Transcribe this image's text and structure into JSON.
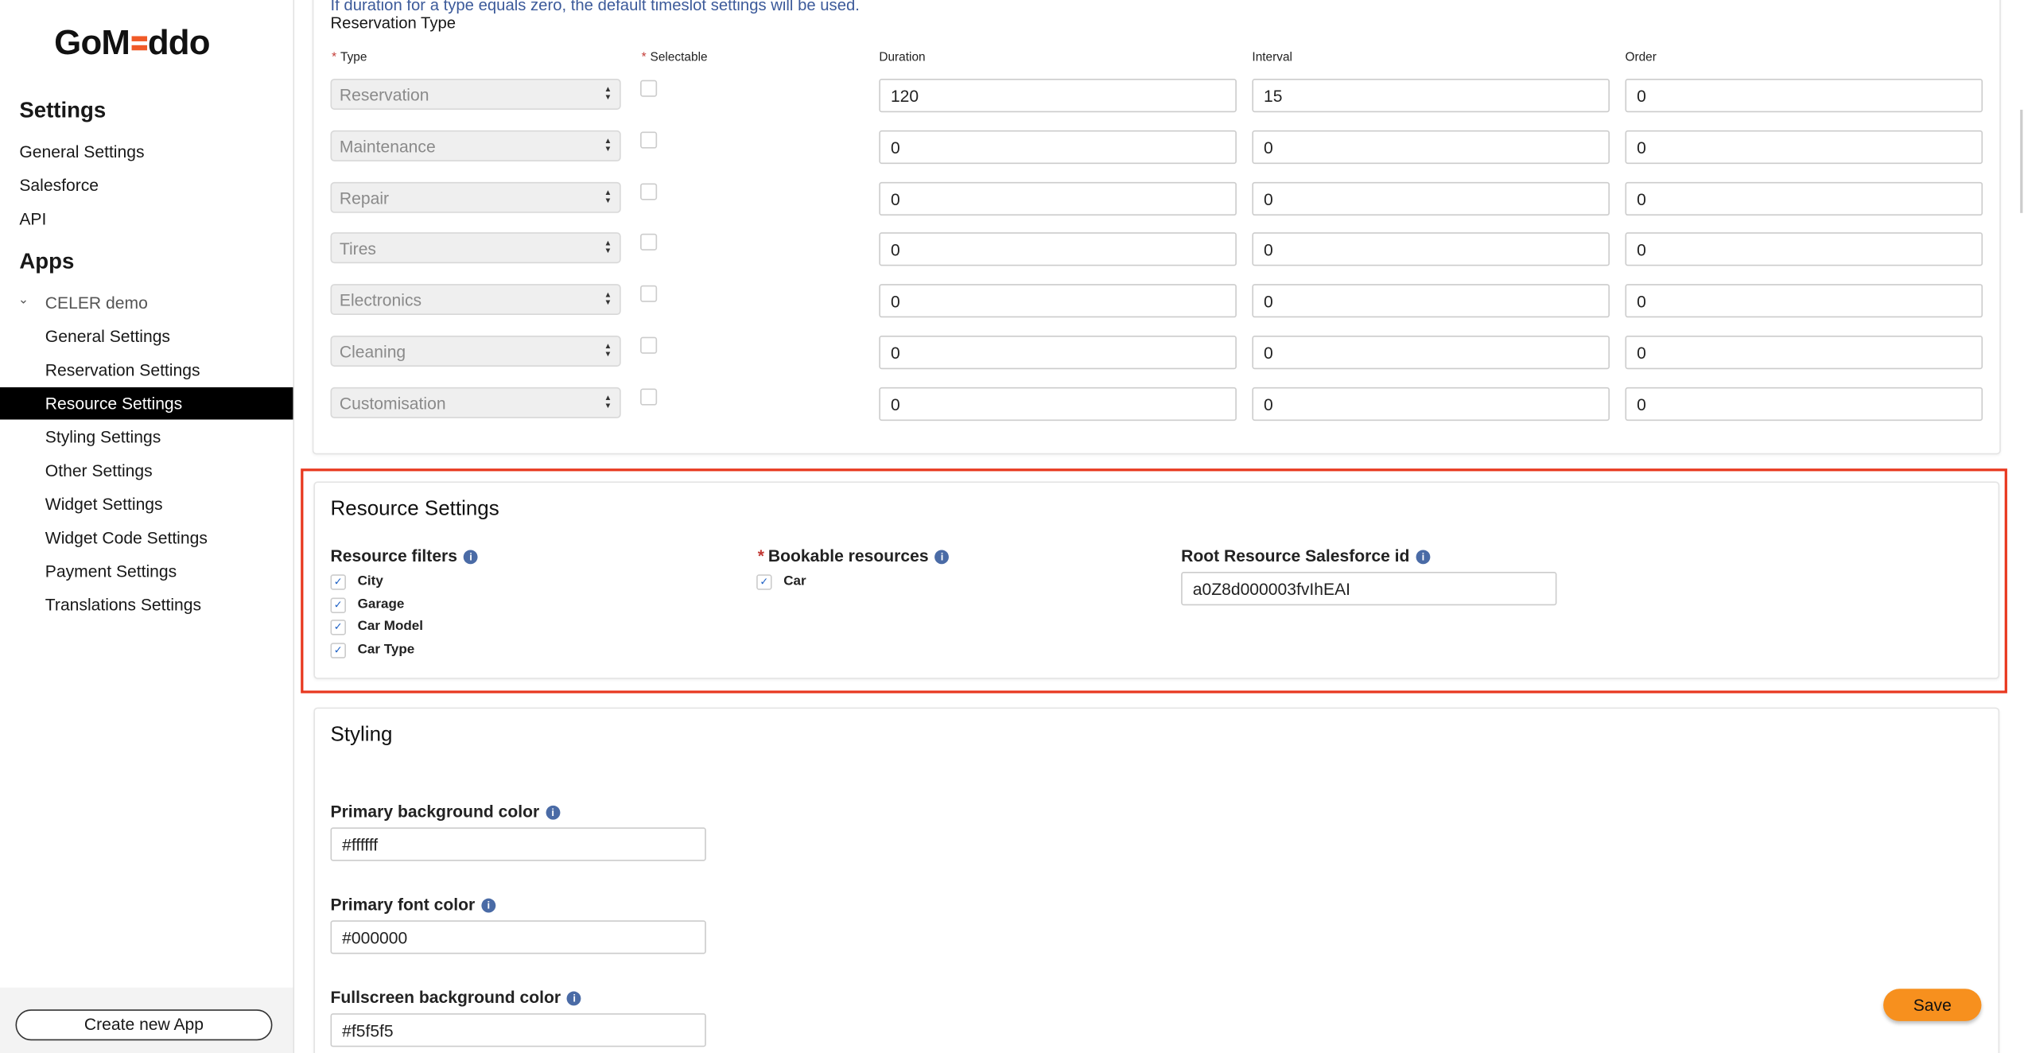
{
  "sidebar": {
    "logo": {
      "left": "GoM",
      "right": "ddo",
      "accent": "#f05a28"
    },
    "settings_heading": "Settings",
    "settings_items": [
      "General Settings",
      "Salesforce",
      "API"
    ],
    "apps_heading": "Apps",
    "app_name": "CELER demo",
    "app_items": [
      "General Settings",
      "Reservation Settings",
      "Resource Settings",
      "Styling Settings",
      "Other Settings",
      "Widget Settings",
      "Widget Code Settings",
      "Payment Settings",
      "Translations Settings"
    ],
    "active_item": "Resource Settings",
    "create_button": "Create new App"
  },
  "reservation": {
    "note": "If duration for a type equals zero, the default timeslot settings will be used.",
    "heading": "Reservation Type",
    "columns": {
      "type": "Type",
      "selectable": "Selectable",
      "duration": "Duration",
      "interval": "Interval",
      "order": "Order"
    },
    "rows": [
      {
        "type": "Reservation",
        "selectable": false,
        "duration": "120",
        "interval": "15",
        "order": "0"
      },
      {
        "type": "Maintenance",
        "selectable": false,
        "duration": "0",
        "interval": "0",
        "order": "0"
      },
      {
        "type": "Repair",
        "selectable": false,
        "duration": "0",
        "interval": "0",
        "order": "0"
      },
      {
        "type": "Tires",
        "selectable": false,
        "duration": "0",
        "interval": "0",
        "order": "0"
      },
      {
        "type": "Electronics",
        "selectable": false,
        "duration": "0",
        "interval": "0",
        "order": "0"
      },
      {
        "type": "Cleaning",
        "selectable": false,
        "duration": "0",
        "interval": "0",
        "order": "0"
      },
      {
        "type": "Customisation",
        "selectable": false,
        "duration": "0",
        "interval": "0",
        "order": "0"
      }
    ]
  },
  "resource": {
    "title": "Resource Settings",
    "filters_label": "Resource filters",
    "filters": [
      "City",
      "Garage",
      "Car Model",
      "Car Type"
    ],
    "bookable_label": "Bookable resources",
    "bookable": [
      "Car"
    ],
    "root_label": "Root Resource Salesforce id",
    "root_value": "a0Z8d000003fvIhEAI",
    "highlight_color": "#e8381f"
  },
  "styling": {
    "title": "Styling",
    "fields": [
      {
        "label": "Primary background color",
        "value": "#ffffff"
      },
      {
        "label": "Primary font color",
        "value": "#000000"
      },
      {
        "label": "Fullscreen background color",
        "value": "#f5f5f5"
      }
    ]
  },
  "save_button": "Save",
  "save_color": "#f7901e"
}
